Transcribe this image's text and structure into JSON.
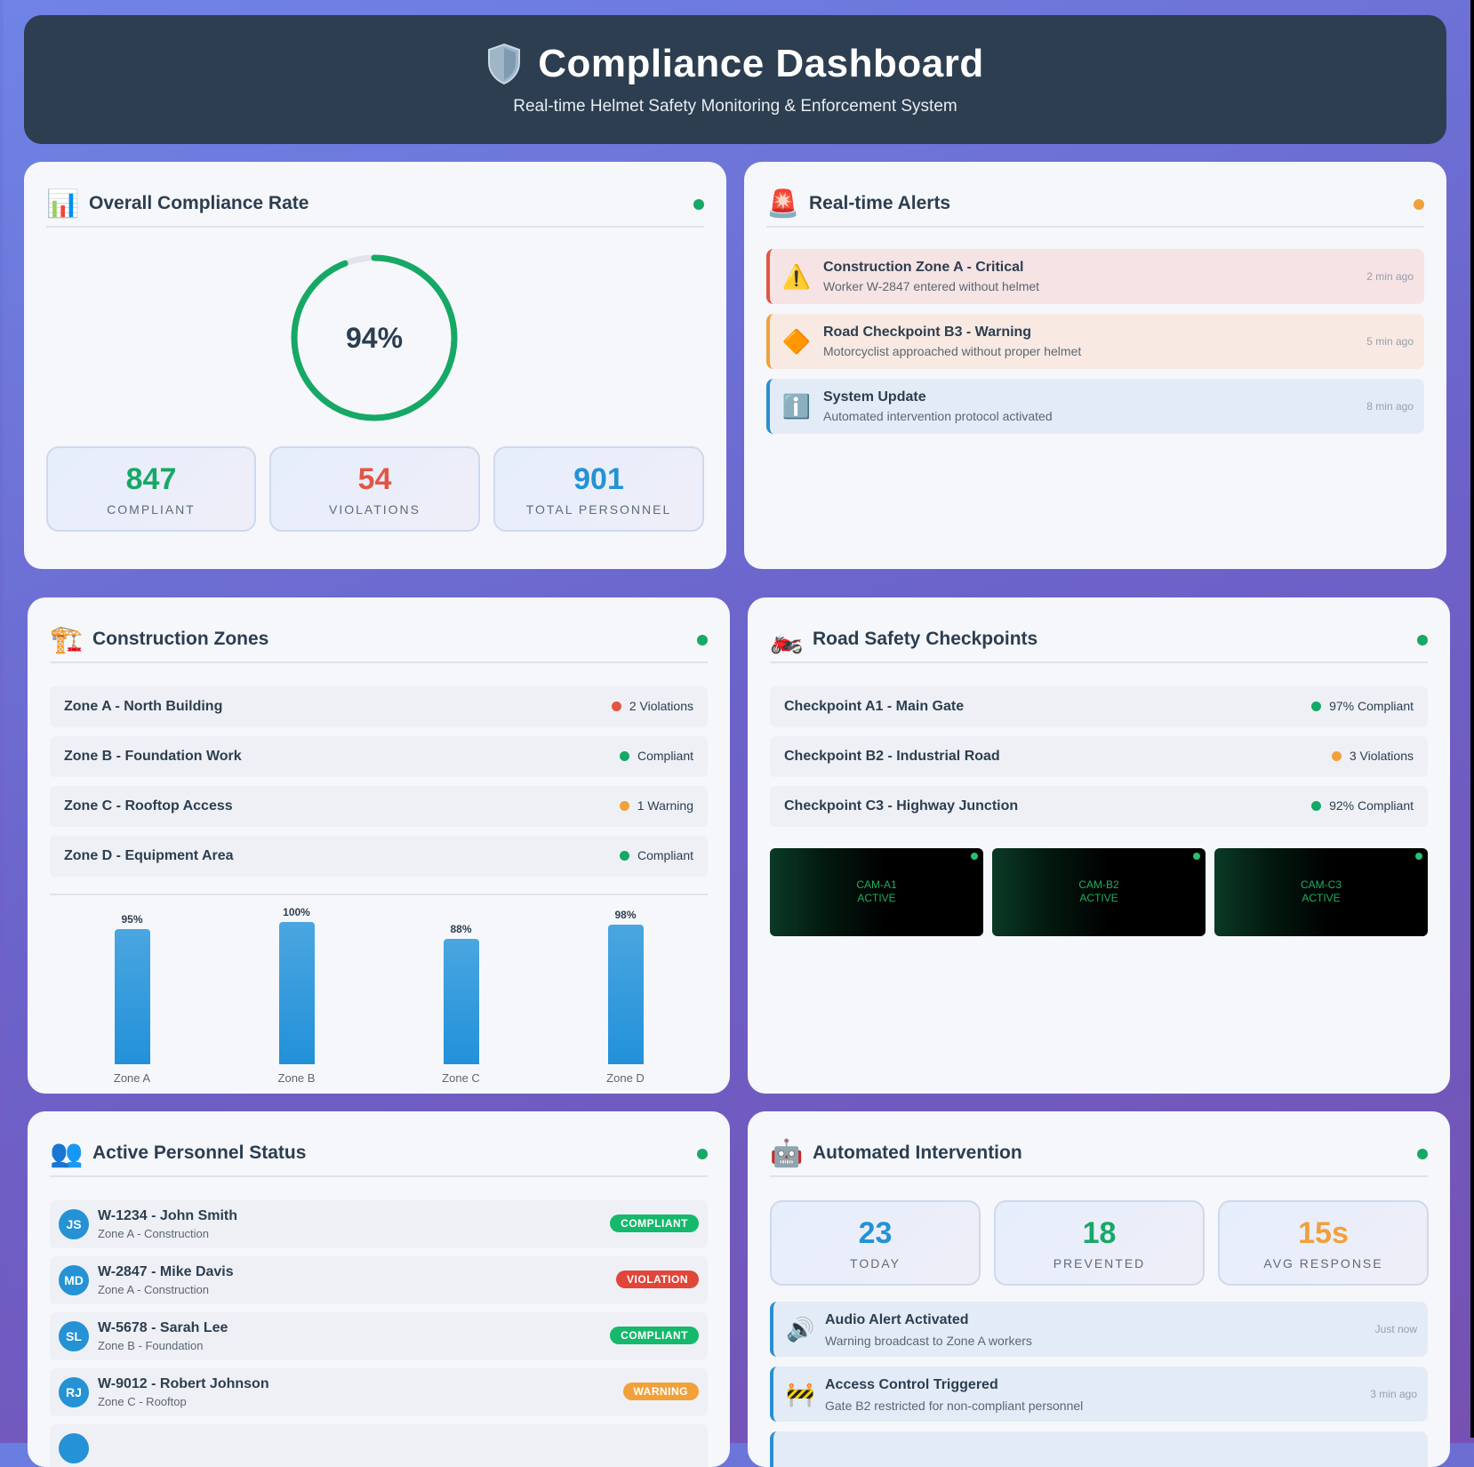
{
  "header": {
    "title": "Compliance Dashboard",
    "subtitle": "Real-time Helmet Safety Monitoring & Enforcement System",
    "icon": "shield-icon"
  },
  "colors": {
    "green": "#16a865",
    "red": "#e25545",
    "orange": "#f0a13a",
    "blue": "#2492d4",
    "navy": "#2c3e50"
  },
  "compliance": {
    "title": "Overall Compliance Rate",
    "icon": "bar-chart-icon",
    "rate_label": "94%",
    "rate": 0.94,
    "stats": [
      {
        "value": "847",
        "label": "COMPLIANT",
        "color": "#16a865"
      },
      {
        "value": "54",
        "label": "VIOLATIONS",
        "color": "#e25545"
      },
      {
        "value": "901",
        "label": "TOTAL PERSONNEL",
        "color": "#2492d4"
      }
    ]
  },
  "alerts": {
    "title": "Real-time Alerts",
    "icon": "siren-icon",
    "items": [
      {
        "title": "Construction Zone A - Critical",
        "message": "Worker W-2847 entered without helmet",
        "time": "2 min ago",
        "icon": "warning-icon"
      },
      {
        "title": "Road Checkpoint B3 - Warning",
        "message": "Motorcyclist approached without proper helmet",
        "time": "5 min ago",
        "icon": "orange-diamond-icon"
      },
      {
        "title": "System Update",
        "message": "Automated intervention protocol activated",
        "time": "8 min ago",
        "icon": "info-icon"
      }
    ]
  },
  "zones": {
    "title": "Construction Zones",
    "icon": "crane-icon",
    "items": [
      {
        "name": "Zone A - North Building",
        "status": "2 Violations",
        "dot": "#e25545"
      },
      {
        "name": "Zone B - Foundation Work",
        "status": "Compliant",
        "dot": "#16a865"
      },
      {
        "name": "Zone C - Rooftop Access",
        "status": "1 Warning",
        "dot": "#f0a13a"
      },
      {
        "name": "Zone D - Equipment Area",
        "status": "Compliant",
        "dot": "#16a865"
      }
    ]
  },
  "chart_data": {
    "type": "bar",
    "categories": [
      "Zone A",
      "Zone B",
      "Zone C",
      "Zone D"
    ],
    "values": [
      95,
      100,
      88,
      98
    ],
    "value_labels": [
      "95%",
      "100%",
      "88%",
      "98%"
    ],
    "ylim": [
      0,
      100
    ],
    "grid": false
  },
  "checkpoints": {
    "title": "Road Safety Checkpoints",
    "icon": "motorcycle-icon",
    "items": [
      {
        "name": "Checkpoint A1 - Main Gate",
        "status": "97% Compliant",
        "dot": "#16a865"
      },
      {
        "name": "Checkpoint B2 - Industrial Road",
        "status": "3 Violations",
        "dot": "#f0a13a"
      },
      {
        "name": "Checkpoint C3 - Highway Junction",
        "status": "92% Compliant",
        "dot": "#16a865"
      }
    ],
    "cameras": [
      {
        "id": "CAM-A1",
        "state": "ACTIVE"
      },
      {
        "id": "CAM-B2",
        "state": "ACTIVE"
      },
      {
        "id": "CAM-C3",
        "state": "ACTIVE"
      }
    ]
  },
  "personnel": {
    "title": "Active Personnel Status",
    "icon": "people-icon",
    "items": [
      {
        "initials": "JS",
        "name": "W-1234 - John Smith",
        "zone": "Zone A - Construction",
        "badge": "COMPLIANT",
        "badge_color": "#16b86b"
      },
      {
        "initials": "MD",
        "name": "W-2847 - Mike Davis",
        "zone": "Zone A - Construction",
        "badge": "VIOLATION",
        "badge_color": "#e0463a"
      },
      {
        "initials": "SL",
        "name": "W-5678 - Sarah Lee",
        "zone": "Zone B - Foundation",
        "badge": "COMPLIANT",
        "badge_color": "#16b86b"
      },
      {
        "initials": "RJ",
        "name": "W-9012 - Robert Johnson",
        "zone": "Zone C - Rooftop",
        "badge": "WARNING",
        "badge_color": "#f0a13a"
      }
    ]
  },
  "intervention": {
    "title": "Automated Intervention",
    "icon": "robot-icon",
    "stats": [
      {
        "value": "23",
        "label": "TODAY",
        "color": "#2492d4"
      },
      {
        "value": "18",
        "label": "PREVENTED",
        "color": "#16a865"
      },
      {
        "value": "15s",
        "label": "AVG RESPONSE",
        "color": "#f0a13a"
      }
    ],
    "items": [
      {
        "title": "Audio Alert Activated",
        "message": "Warning broadcast to Zone A workers",
        "time": "Just now",
        "icon": "speaker-icon"
      },
      {
        "title": "Access Control Triggered",
        "message": "Gate B2 restricted for non-compliant personnel",
        "time": "3 min ago",
        "icon": "barrier-icon"
      }
    ]
  }
}
